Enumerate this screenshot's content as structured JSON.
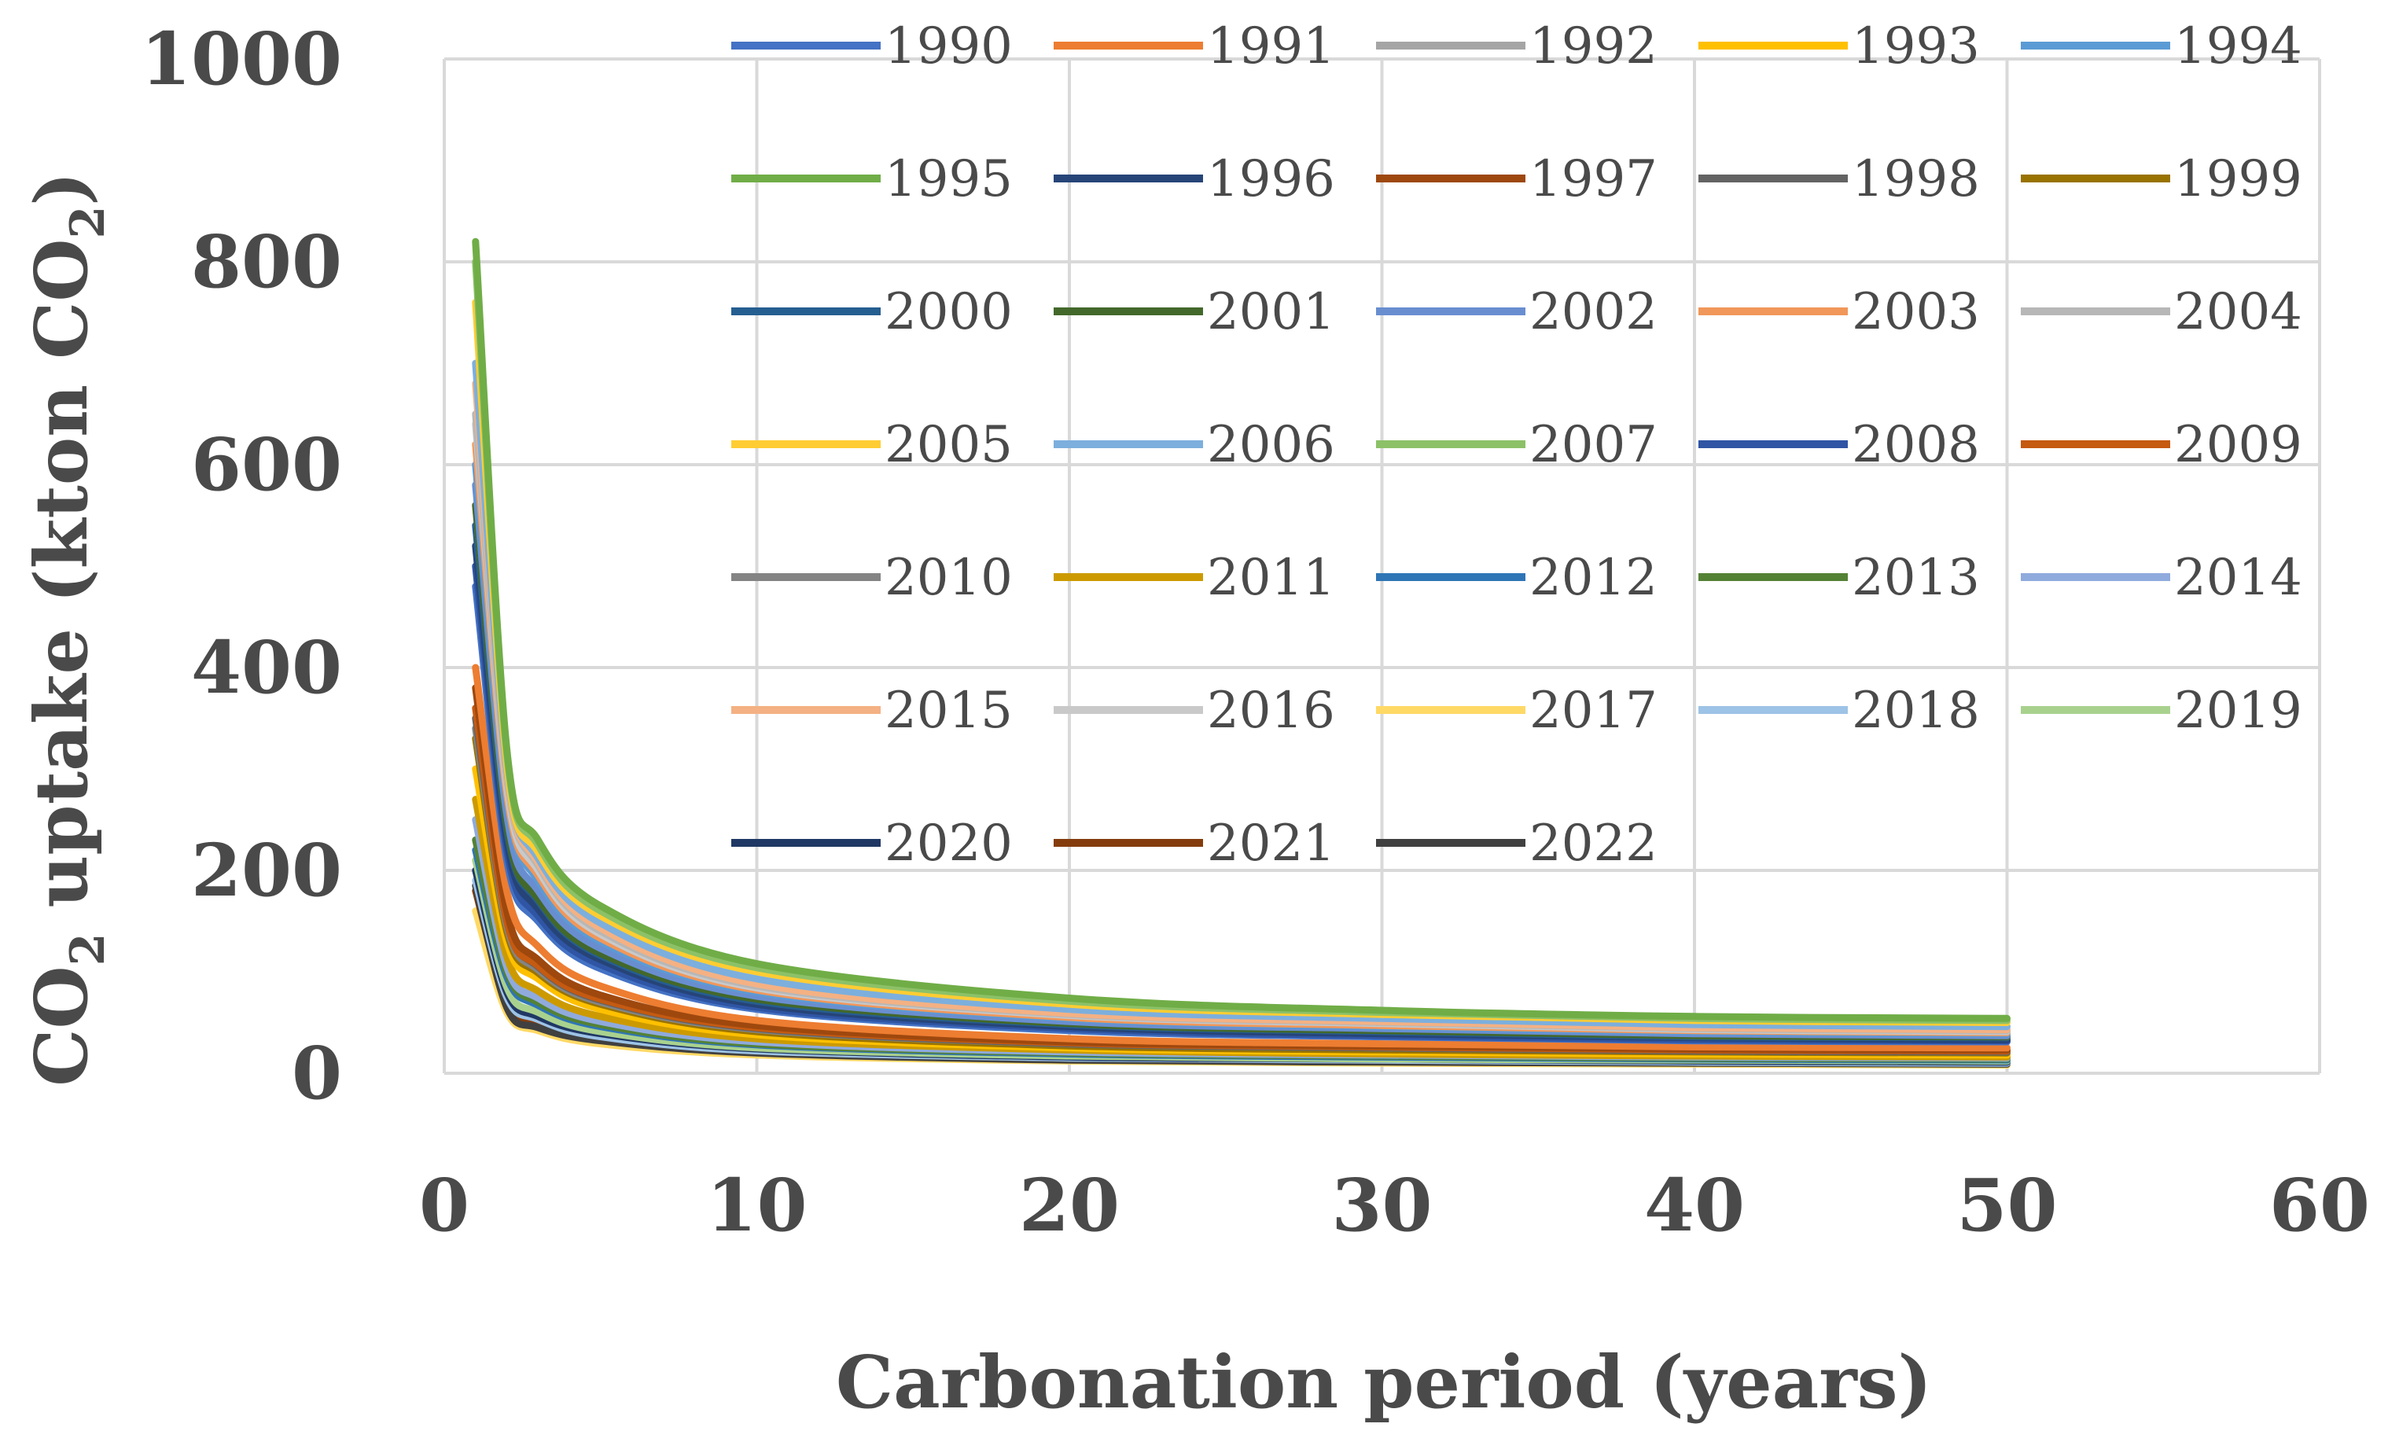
{
  "chart_data": {
    "type": "line",
    "title": "",
    "xlabel": "Carbonation period (years)",
    "ylabel": "CO2 uptake (kton CO2)",
    "xlim": [
      0,
      60
    ],
    "ylim": [
      0,
      1000
    ],
    "xticks": [
      0,
      10,
      20,
      30,
      40,
      50,
      60
    ],
    "yticks": [
      0,
      200,
      400,
      600,
      800,
      1000
    ],
    "grid": true,
    "legend_position": "top-right",
    "x": [
      1,
      2,
      3,
      5,
      10,
      20,
      30,
      40,
      50
    ],
    "series": [
      {
        "name": "1990",
        "color": "#4472c4",
        "values": [
          480,
          210,
          150,
          103,
          63,
          42,
          36,
          32,
          31
        ]
      },
      {
        "name": "1991",
        "color": "#ed7d31",
        "values": [
          400,
          180,
          125,
          86,
          52,
          34,
          29,
          26,
          25
        ]
      },
      {
        "name": "1992",
        "color": "#a5a5a5",
        "values": [
          560,
          250,
          178,
          120,
          75,
          50,
          43,
          38,
          36
        ]
      },
      {
        "name": "1993",
        "color": "#ffc000",
        "values": [
          300,
          130,
          93,
          63,
          38,
          25,
          21,
          19,
          18
        ]
      },
      {
        "name": "1994",
        "color": "#5b9bd5",
        "values": [
          600,
          270,
          190,
          130,
          80,
          54,
          46,
          41,
          39
        ]
      },
      {
        "name": "1995",
        "color": "#70ad47",
        "values": [
          820,
          320,
          230,
          165,
          108,
          74,
          62,
          56,
          54
        ]
      },
      {
        "name": "1996",
        "color": "#264478",
        "values": [
          520,
          230,
          162,
          112,
          68,
          46,
          39,
          35,
          33
        ]
      },
      {
        "name": "1997",
        "color": "#9e480e",
        "values": [
          380,
          160,
          112,
          77,
          47,
          31,
          27,
          24,
          23
        ]
      },
      {
        "name": "1998",
        "color": "#636363",
        "values": [
          350,
          150,
          105,
          72,
          44,
          29,
          25,
          22,
          21
        ]
      },
      {
        "name": "1999",
        "color": "#997300",
        "values": [
          330,
          140,
          99,
          68,
          41,
          27,
          23,
          21,
          20
        ]
      },
      {
        "name": "2000",
        "color": "#255e91",
        "values": [
          540,
          240,
          170,
          116,
          71,
          48,
          41,
          36,
          35
        ]
      },
      {
        "name": "2001",
        "color": "#43682b",
        "values": [
          560,
          245,
          172,
          118,
          73,
          49,
          42,
          37,
          36
        ]
      },
      {
        "name": "2002",
        "color": "#698ed0",
        "values": [
          580,
          255,
          180,
          123,
          76,
          51,
          44,
          39,
          37
        ]
      },
      {
        "name": "2003",
        "color": "#f1975a",
        "values": [
          620,
          275,
          195,
          133,
          82,
          55,
          47,
          42,
          40
        ]
      },
      {
        "name": "2004",
        "color": "#b7b7b7",
        "values": [
          650,
          290,
          205,
          140,
          86,
          58,
          50,
          44,
          42
        ]
      },
      {
        "name": "2005",
        "color": "#ffcd33",
        "values": [
          760,
          305,
          218,
          155,
          100,
          68,
          58,
          52,
          50
        ]
      },
      {
        "name": "2006",
        "color": "#7cafdd",
        "values": [
          700,
          300,
          212,
          148,
          93,
          63,
          54,
          48,
          46
        ]
      },
      {
        "name": "2007",
        "color": "#8cc168",
        "values": [
          800,
          315,
          225,
          160,
          104,
          71,
          60,
          54,
          52
        ]
      },
      {
        "name": "2008",
        "color": "#2f55a4",
        "values": [
          500,
          220,
          155,
          107,
          65,
          44,
          37,
          33,
          32
        ]
      },
      {
        "name": "2009",
        "color": "#c55a11",
        "values": [
          360,
          150,
          106,
          73,
          45,
          30,
          26,
          23,
          22
        ]
      },
      {
        "name": "2010",
        "color": "#848484",
        "values": [
          340,
          145,
          102,
          70,
          43,
          29,
          25,
          22,
          21
        ]
      },
      {
        "name": "2011",
        "color": "#cc9a00",
        "values": [
          270,
          115,
          81,
          56,
          34,
          23,
          19,
          17,
          16
        ]
      },
      {
        "name": "2012",
        "color": "#2e75b6",
        "values": [
          220,
          95,
          67,
          46,
          28,
          19,
          16,
          14,
          13
        ]
      },
      {
        "name": "2013",
        "color": "#548235",
        "values": [
          230,
          100,
          70,
          48,
          29,
          20,
          17,
          15,
          14
        ]
      },
      {
        "name": "2014",
        "color": "#8faadc",
        "values": [
          250,
          105,
          74,
          51,
          31,
          21,
          18,
          16,
          15
        ]
      },
      {
        "name": "2015",
        "color": "#f4b183",
        "values": [
          680,
          295,
          208,
          143,
          88,
          59,
          51,
          45,
          43
        ]
      },
      {
        "name": "2016",
        "color": "#c9c9c9",
        "values": [
          640,
          282,
          200,
          137,
          84,
          57,
          49,
          43,
          41
        ]
      },
      {
        "name": "2017",
        "color": "#ffd966",
        "values": [
          160,
          60,
          42,
          29,
          18,
          12,
          10,
          9,
          8
        ]
      },
      {
        "name": "2018",
        "color": "#9dc3e6",
        "values": [
          190,
          75,
          53,
          36,
          22,
          15,
          13,
          11,
          10
        ]
      },
      {
        "name": "2019",
        "color": "#a9d18e",
        "values": [
          210,
          85,
          60,
          41,
          25,
          17,
          14,
          13,
          12
        ]
      },
      {
        "name": "2020",
        "color": "#203864",
        "values": [
          200,
          80,
          56,
          39,
          24,
          16,
          14,
          12,
          11
        ]
      },
      {
        "name": "2021",
        "color": "#843c0c",
        "values": [
          180,
          70,
          49,
          34,
          21,
          14,
          12,
          10,
          10
        ]
      },
      {
        "name": "2022",
        "color": "#404040",
        "values": [
          185,
          65,
          45,
          32,
          20,
          13,
          11,
          10,
          9
        ]
      }
    ]
  }
}
